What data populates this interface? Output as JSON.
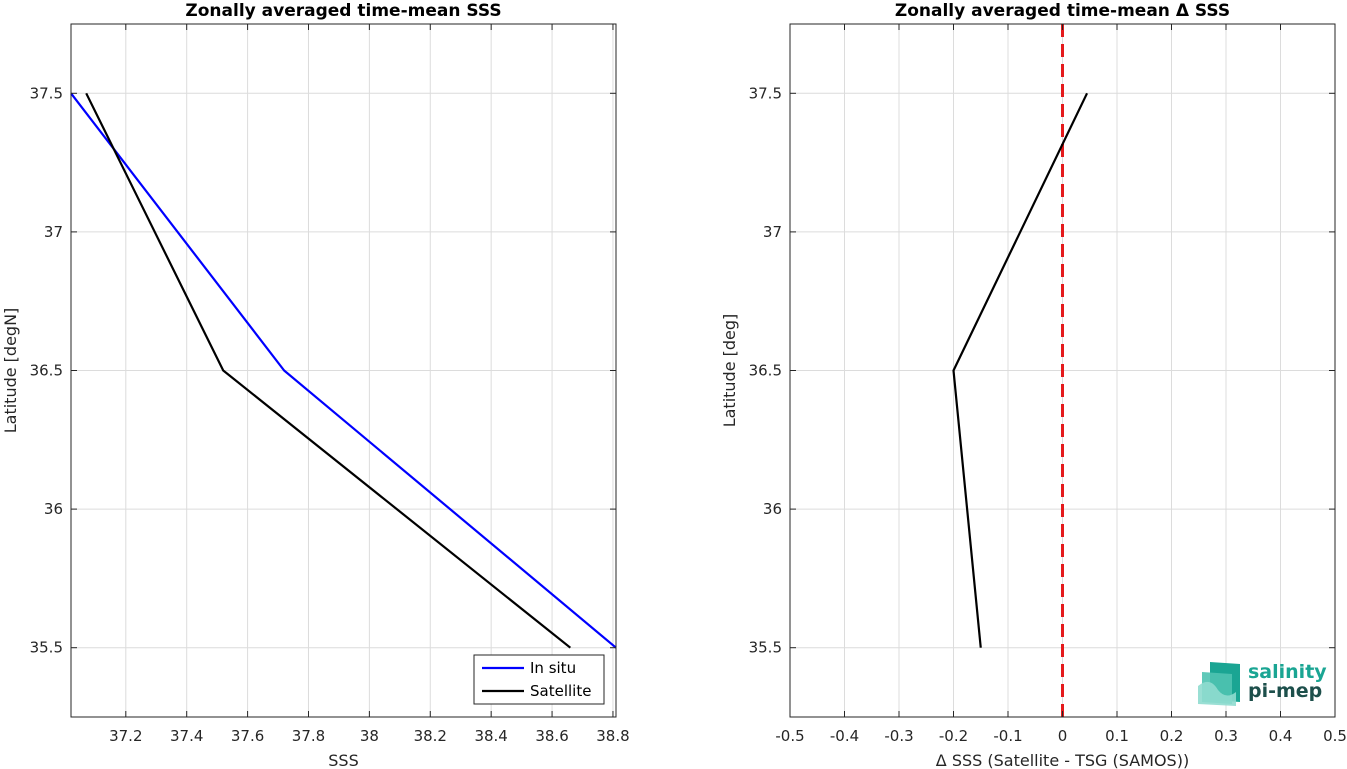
{
  "chart_data": [
    {
      "type": "line",
      "title": "Zonally averaged time-mean SSS",
      "xlabel": "SSS",
      "ylabel": "Latitude [degN]",
      "xlim": [
        37.02,
        38.81
      ],
      "ylim": [
        35.25,
        37.75
      ],
      "xticks": [
        "37.2",
        "37.4",
        "37.6",
        "37.8",
        "38",
        "38.2",
        "38.4",
        "38.6",
        "38.8"
      ],
      "yticks": [
        "35.5",
        "36",
        "36.5",
        "37",
        "37.5"
      ],
      "grid": true,
      "legend_position": "bottom-right",
      "series": [
        {
          "name": "In situ",
          "color": "#0000ff",
          "x": [
            37.02,
            37.72,
            38.81
          ],
          "y": [
            37.5,
            36.5,
            35.5
          ]
        },
        {
          "name": "Satellite",
          "color": "#000000",
          "x": [
            37.07,
            37.52,
            38.66
          ],
          "y": [
            37.5,
            36.5,
            35.5
          ]
        }
      ]
    },
    {
      "type": "line",
      "title": "Zonally averaged time-mean Δ SSS",
      "xlabel": "Δ SSS (Satellite - TSG (SAMOS))",
      "ylabel": "Latitude [deg]",
      "xlim": [
        -0.5,
        0.5
      ],
      "ylim": [
        35.25,
        37.75
      ],
      "xticks": [
        "-0.5",
        "-0.4",
        "-0.3",
        "-0.2",
        "-0.1",
        "0",
        "0.1",
        "0.2",
        "0.3",
        "0.4",
        "0.5"
      ],
      "yticks": [
        "35.5",
        "36",
        "36.5",
        "37",
        "37.5"
      ],
      "grid": true,
      "series": [
        {
          "color": "#000000",
          "x": [
            -0.15,
            -0.2,
            0.045
          ],
          "y": [
            35.5,
            36.5,
            37.5
          ]
        }
      ],
      "reference_line": {
        "x": 0,
        "color": "#e41a1c",
        "style": "dashed"
      }
    }
  ],
  "logo": {
    "line1": "salinity",
    "line2": "pi-mep"
  }
}
